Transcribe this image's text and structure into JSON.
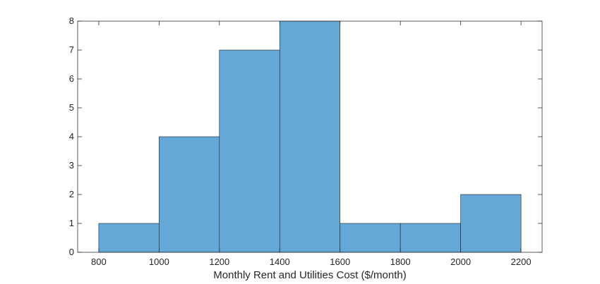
{
  "chart_data": {
    "type": "bar",
    "subtype": "histogram",
    "bin_edges": [
      800,
      1000,
      1200,
      1400,
      1600,
      1800,
      2000,
      2200
    ],
    "values": [
      1,
      4,
      7,
      8,
      1,
      1,
      2
    ],
    "title": "",
    "xlabel": "Monthly Rent and Utilities Cost ($/month)",
    "ylabel": "",
    "xlim": [
      730,
      2270
    ],
    "ylim": [
      0,
      8
    ],
    "xticks": [
      800,
      1000,
      1200,
      1400,
      1600,
      1800,
      2000,
      2200
    ],
    "yticks": [
      0,
      1,
      2,
      3,
      4,
      5,
      6,
      7,
      8
    ],
    "grid": false,
    "legend": "none",
    "colors": {
      "bar_fill": "#64a8d8",
      "bar_edge": "#1f1f1f",
      "axis": "#262626"
    }
  }
}
